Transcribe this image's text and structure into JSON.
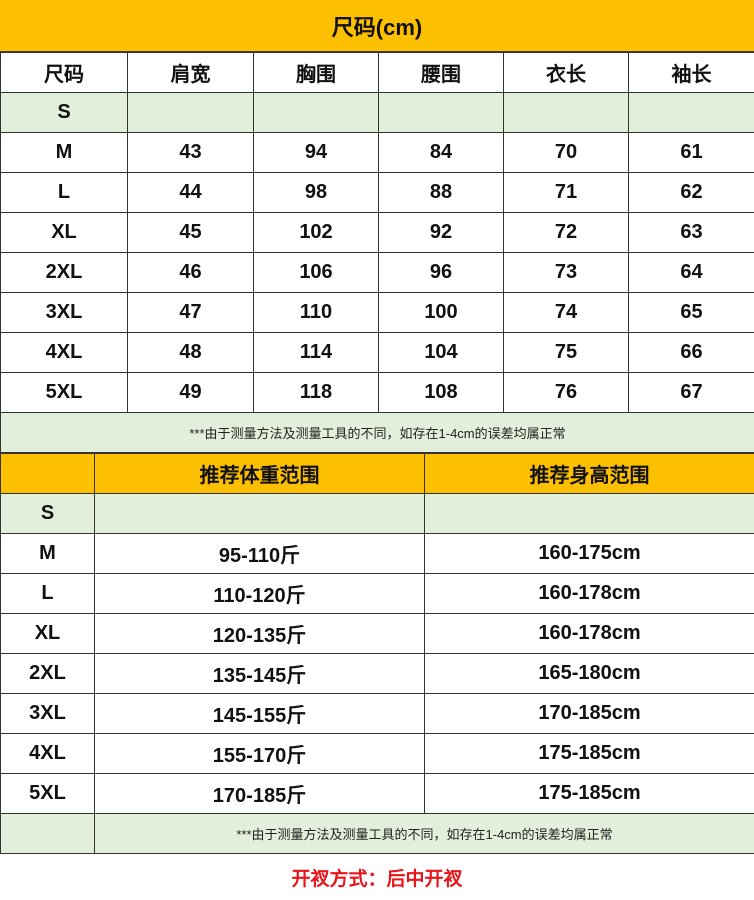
{
  "title": "尺码(cm)",
  "table1": {
    "headers": [
      "尺码",
      "肩宽",
      "胸围",
      "腰围",
      "衣长",
      "袖长"
    ],
    "rows": [
      [
        "S",
        "",
        "",
        "",
        "",
        ""
      ],
      [
        "M",
        "43",
        "94",
        "84",
        "70",
        "61"
      ],
      [
        "L",
        "44",
        "98",
        "88",
        "71",
        "62"
      ],
      [
        "XL",
        "45",
        "102",
        "92",
        "72",
        "63"
      ],
      [
        "2XL",
        "46",
        "106",
        "96",
        "73",
        "64"
      ],
      [
        "3XL",
        "47",
        "110",
        "100",
        "74",
        "65"
      ],
      [
        "4XL",
        "48",
        "114",
        "104",
        "75",
        "66"
      ],
      [
        "5XL",
        "49",
        "118",
        "108",
        "76",
        "67"
      ]
    ],
    "note": "***由于测量方法及测量工具的不同，如存在1-4cm的误差均属正常"
  },
  "table2": {
    "headers": [
      "",
      "推荐体重范围",
      "推荐身高范围"
    ],
    "rows": [
      [
        "S",
        "",
        ""
      ],
      [
        "M",
        "95-110斤",
        "160-175cm"
      ],
      [
        "L",
        "110-120斤",
        "160-178cm"
      ],
      [
        "XL",
        "120-135斤",
        "160-178cm"
      ],
      [
        "2XL",
        "135-145斤",
        "165-180cm"
      ],
      [
        "3XL",
        "145-155斤",
        "170-185cm"
      ],
      [
        "4XL",
        "155-170斤",
        "175-185cm"
      ],
      [
        "5XL",
        "170-185斤",
        "175-185cm"
      ]
    ],
    "note": "***由于测量方法及测量工具的不同，如存在1-4cm的误差均属正常"
  },
  "footer": "开衩方式：后中开衩",
  "colors": {
    "header": "#FDC000",
    "highlight": "#E2EFDA",
    "footer_text": "#E8151B"
  }
}
